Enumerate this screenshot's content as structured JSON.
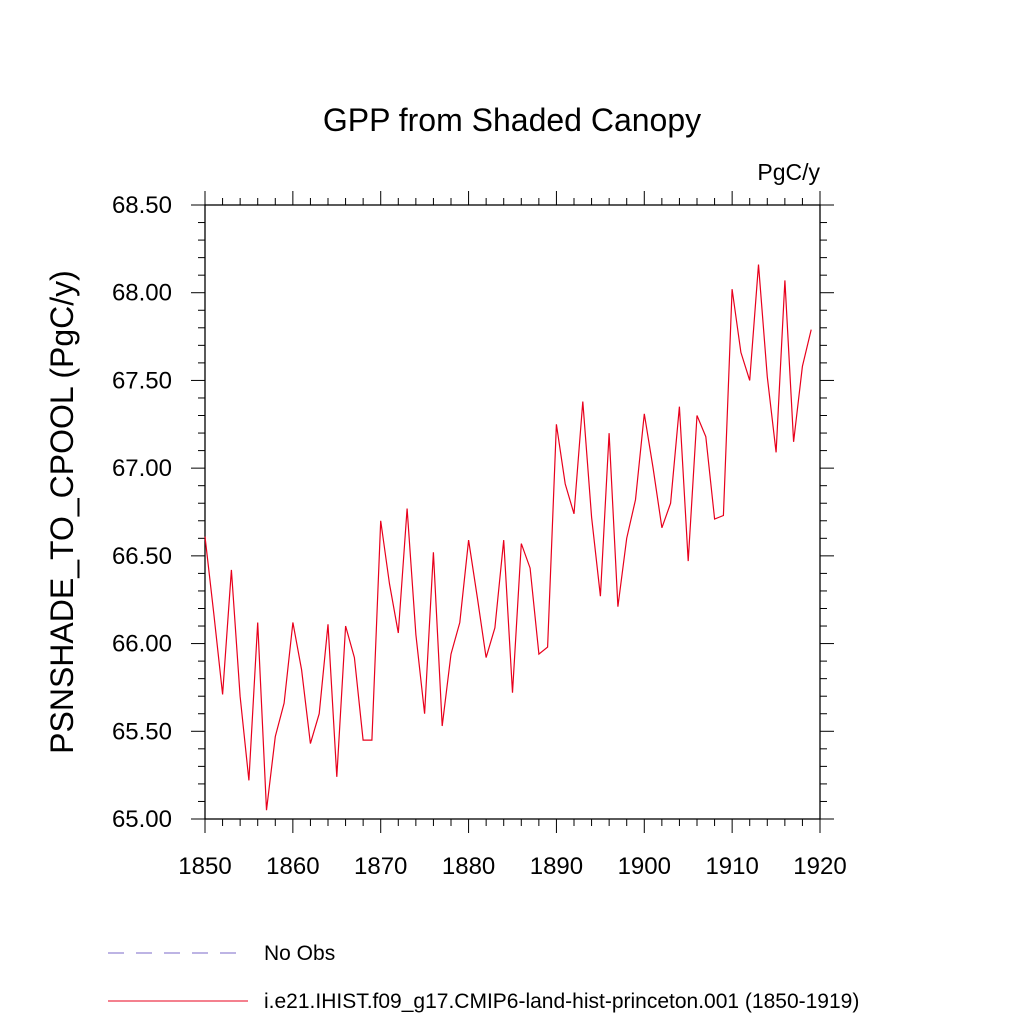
{
  "chart_data": {
    "type": "line",
    "title": "GPP from Shaded Canopy",
    "units_label": "PgC/y",
    "ylabel": "PSNSHADE_TO_CPOOL  (PgC/y)",
    "xlabel": "",
    "xlim": [
      1850,
      1920
    ],
    "ylim": [
      65.0,
      68.5
    ],
    "x_ticks": [
      1850,
      1860,
      1870,
      1880,
      1890,
      1900,
      1910,
      1920
    ],
    "x_tick_labels": [
      "1850",
      "1860",
      "1870",
      "1880",
      "1890",
      "1900",
      "1910",
      "1920"
    ],
    "y_ticks": [
      65.0,
      65.5,
      66.0,
      66.5,
      67.0,
      67.5,
      68.0,
      68.5
    ],
    "y_tick_labels": [
      "65.00",
      "65.50",
      "66.00",
      "66.50",
      "67.00",
      "67.50",
      "68.00",
      "68.50"
    ],
    "grid": false,
    "legend_placement": "bottom",
    "legend": [
      {
        "name": "No Obs",
        "color": "#7b68c8",
        "style": "dashed"
      },
      {
        "name": "i.e21.IHIST.f09_g17.CMIP6-land-hist-princeton.001 (1850-1919)",
        "color": "#e8001c",
        "style": "solid"
      }
    ],
    "series": [
      {
        "name": "i.e21.IHIST.f09_g17.CMIP6-land-hist-princeton.001 (1850-1919)",
        "color": "#e8001c",
        "x": [
          1850,
          1851,
          1852,
          1853,
          1854,
          1855,
          1856,
          1857,
          1858,
          1859,
          1860,
          1861,
          1862,
          1863,
          1864,
          1865,
          1866,
          1867,
          1868,
          1869,
          1870,
          1871,
          1872,
          1873,
          1874,
          1875,
          1876,
          1877,
          1878,
          1879,
          1880,
          1881,
          1882,
          1883,
          1884,
          1885,
          1886,
          1887,
          1888,
          1889,
          1890,
          1891,
          1892,
          1893,
          1894,
          1895,
          1896,
          1897,
          1898,
          1899,
          1900,
          1901,
          1902,
          1903,
          1904,
          1905,
          1906,
          1907,
          1908,
          1909,
          1910,
          1911,
          1912,
          1913,
          1914,
          1915,
          1916,
          1917,
          1918,
          1919
        ],
        "values": [
          66.61,
          66.17,
          65.71,
          66.42,
          65.7,
          65.22,
          66.12,
          65.05,
          65.47,
          65.66,
          66.12,
          65.85,
          65.43,
          65.6,
          66.11,
          65.24,
          66.1,
          65.92,
          65.45,
          65.45,
          66.7,
          66.34,
          66.06,
          66.77,
          66.05,
          65.6,
          66.52,
          65.53,
          65.94,
          66.12,
          66.59,
          66.26,
          65.92,
          66.09,
          66.59,
          65.72,
          66.57,
          66.43,
          65.94,
          65.98,
          67.25,
          66.91,
          66.74,
          67.38,
          66.72,
          66.27,
          67.2,
          66.21,
          66.6,
          66.82,
          67.31,
          67.0,
          66.66,
          66.8,
          67.35,
          66.47,
          67.3,
          67.18,
          66.71,
          66.73,
          68.02,
          67.66,
          67.5,
          68.16,
          67.52,
          67.09,
          68.07,
          67.15,
          67.58,
          67.79
        ]
      }
    ]
  }
}
